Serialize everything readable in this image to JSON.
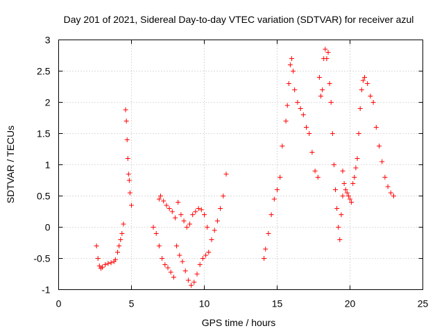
{
  "chart_data": {
    "type": "scatter",
    "title": "Day 201 of 2021, Sidereal Day-to-day VTEC variation (SDTVAR) for receiver azul",
    "xlabel": "GPS time / hours",
    "ylabel": "SDTVAR / TECUs",
    "xlim": [
      0,
      25
    ],
    "ylim": [
      -1,
      3
    ],
    "xticks": [
      0,
      5,
      10,
      15,
      20,
      25
    ],
    "xtick_labels": [
      "0",
      "5",
      "10",
      "15",
      "20",
      "25"
    ],
    "yticks": [
      -1,
      -0.5,
      0,
      0.5,
      1,
      1.5,
      2,
      2.5,
      3
    ],
    "ytick_labels": [
      "-1",
      "-0.5",
      "0",
      "0.5",
      "1",
      "1.5",
      "2",
      "2.5",
      "3"
    ],
    "grid": true,
    "marker": "+",
    "series_color": "#ff0000",
    "segments": [
      {
        "name": "arc-1",
        "x": [
          2.6,
          2.7,
          2.8,
          2.9,
          3.0,
          3.2,
          3.4,
          3.6,
          3.8,
          3.9
        ],
        "y": [
          -0.3,
          -0.5,
          -0.62,
          -0.66,
          -0.64,
          -0.6,
          -0.58,
          -0.57,
          -0.55,
          -0.52
        ]
      },
      {
        "name": "arc-2",
        "x": [
          4.05,
          4.15,
          4.25,
          4.35,
          4.45
        ],
        "y": [
          -0.4,
          -0.3,
          -0.2,
          -0.1,
          0.05
        ]
      },
      {
        "name": "arc-3",
        "x": [
          4.6,
          4.65,
          4.7,
          4.75,
          4.8,
          4.85,
          4.9,
          5.0
        ],
        "y": [
          1.88,
          1.7,
          1.4,
          1.1,
          0.85,
          0.75,
          0.55,
          0.35
        ]
      },
      {
        "name": "arc-4",
        "x": [
          6.5,
          6.7,
          6.9,
          7.1,
          7.3,
          7.5,
          7.7,
          7.9,
          8.1,
          8.3,
          8.5,
          8.7,
          8.9,
          9.1,
          9.3,
          9.5,
          9.7,
          9.9,
          10.1,
          10.3,
          10.5,
          10.7,
          10.9,
          11.1,
          11.3,
          11.5
        ],
        "y": [
          0.0,
          -0.1,
          -0.3,
          -0.5,
          -0.6,
          -0.65,
          -0.72,
          -0.8,
          -0.3,
          -0.45,
          -0.55,
          -0.7,
          -0.85,
          -0.93,
          -0.88,
          -0.75,
          -0.6,
          -0.5,
          -0.45,
          -0.4,
          -0.2,
          -0.05,
          0.1,
          0.3,
          0.5,
          0.85
        ]
      },
      {
        "name": "arc-5",
        "x": [
          6.9,
          7.0,
          7.2,
          7.4,
          7.6,
          7.8,
          8.0,
          8.2,
          8.4,
          8.6,
          8.8,
          9.0,
          9.2,
          9.4,
          9.6,
          9.8,
          10.0,
          10.2
        ],
        "y": [
          0.45,
          0.5,
          0.42,
          0.35,
          0.3,
          0.25,
          0.15,
          0.4,
          0.2,
          0.1,
          0.0,
          0.05,
          0.2,
          0.25,
          0.3,
          0.28,
          0.2,
          0.0
        ]
      },
      {
        "name": "arc-6",
        "x": [
          14.1,
          14.2,
          14.4,
          14.6,
          14.8,
          15.0,
          15.2,
          15.35
        ],
        "y": [
          -0.5,
          -0.35,
          -0.1,
          0.2,
          0.45,
          0.6,
          0.8,
          1.3
        ]
      },
      {
        "name": "arc-7",
        "x": [
          15.6,
          15.7,
          15.8,
          15.9,
          16.0,
          16.1,
          16.2,
          16.4,
          16.6,
          16.8,
          17.0,
          17.2,
          17.4,
          17.6,
          17.8
        ],
        "y": [
          1.7,
          1.95,
          2.3,
          2.6,
          2.7,
          2.5,
          2.2,
          2.0,
          1.9,
          1.8,
          1.6,
          1.5,
          1.2,
          0.9,
          0.8
        ]
      },
      {
        "name": "arc-8",
        "x": [
          17.9,
          18.0,
          18.1,
          18.2,
          18.3,
          18.4,
          18.5,
          18.6,
          18.7,
          18.8,
          18.9,
          19.0,
          19.1,
          19.2,
          19.3,
          19.4,
          19.5
        ],
        "y": [
          2.4,
          2.1,
          2.2,
          2.7,
          2.85,
          2.7,
          2.8,
          2.3,
          2.0,
          1.5,
          1.0,
          0.6,
          0.3,
          0.0,
          -0.2,
          0.2,
          0.5
        ]
      },
      {
        "name": "arc-9",
        "x": [
          19.5,
          19.6,
          19.7,
          19.8,
          19.9,
          20.0,
          20.1,
          20.2,
          20.3,
          20.4,
          20.5
        ],
        "y": [
          0.9,
          0.7,
          0.6,
          0.55,
          0.5,
          0.45,
          0.4,
          0.7,
          0.8,
          0.95,
          1.1
        ]
      },
      {
        "name": "arc-10",
        "x": [
          20.6,
          20.7,
          20.8,
          20.9,
          21.0,
          21.2,
          21.4,
          21.6,
          21.8,
          22.0,
          22.2,
          22.4,
          22.6,
          22.8,
          23.0
        ],
        "y": [
          1.5,
          1.9,
          2.2,
          2.35,
          2.4,
          2.3,
          2.1,
          2.0,
          1.6,
          1.3,
          1.05,
          0.8,
          0.65,
          0.55,
          0.5
        ]
      }
    ]
  }
}
